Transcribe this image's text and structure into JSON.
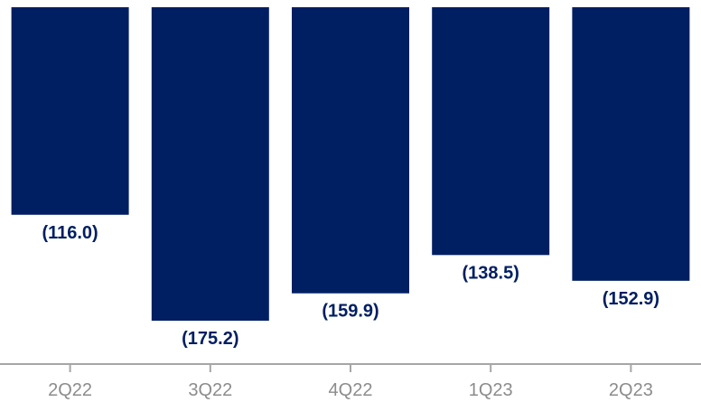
{
  "chart_data": {
    "type": "bar",
    "categories": [
      "2Q22",
      "3Q22",
      "4Q22",
      "1Q23",
      "2Q23"
    ],
    "values": [
      -116.0,
      -175.2,
      -159.9,
      -138.5,
      -152.9
    ],
    "value_labels": [
      "(116.0)",
      "(175.2)",
      "(159.9)",
      "(138.5)",
      "(152.9)"
    ],
    "title": "",
    "xlabel": "",
    "ylabel": "",
    "ylim": [
      -175.2,
      0
    ],
    "grid": false,
    "legend": "none",
    "colors": {
      "bar": "#001E62",
      "value_label": "#001E62",
      "axis": "#A6A6A6",
      "tick_label": "#8C8C8C"
    }
  }
}
